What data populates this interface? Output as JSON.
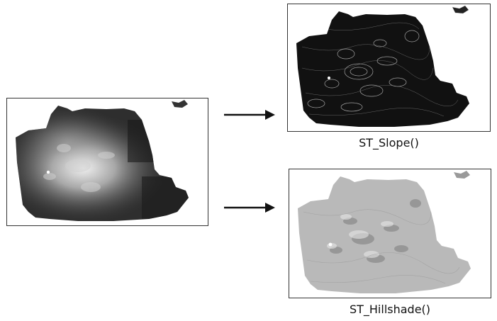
{
  "panels": [
    {
      "id": "dem",
      "caption": ""
    },
    {
      "id": "slope",
      "caption": "ST_Slope()"
    },
    {
      "id": "hillshade",
      "caption": "ST_Hillshade()"
    }
  ],
  "captions": {
    "slope": "ST_Slope()",
    "hillshade": "ST_Hillshade()"
  },
  "colors": {
    "dem_base": "#2a2a2a",
    "dem_high": "#e8e8e8",
    "slope_base": "#111111",
    "slope_line": "#cfcfcf",
    "hillshade_base": "#b9b9b9",
    "hillshade_shadow": "#7d7d7d",
    "arrow": "#111111"
  }
}
